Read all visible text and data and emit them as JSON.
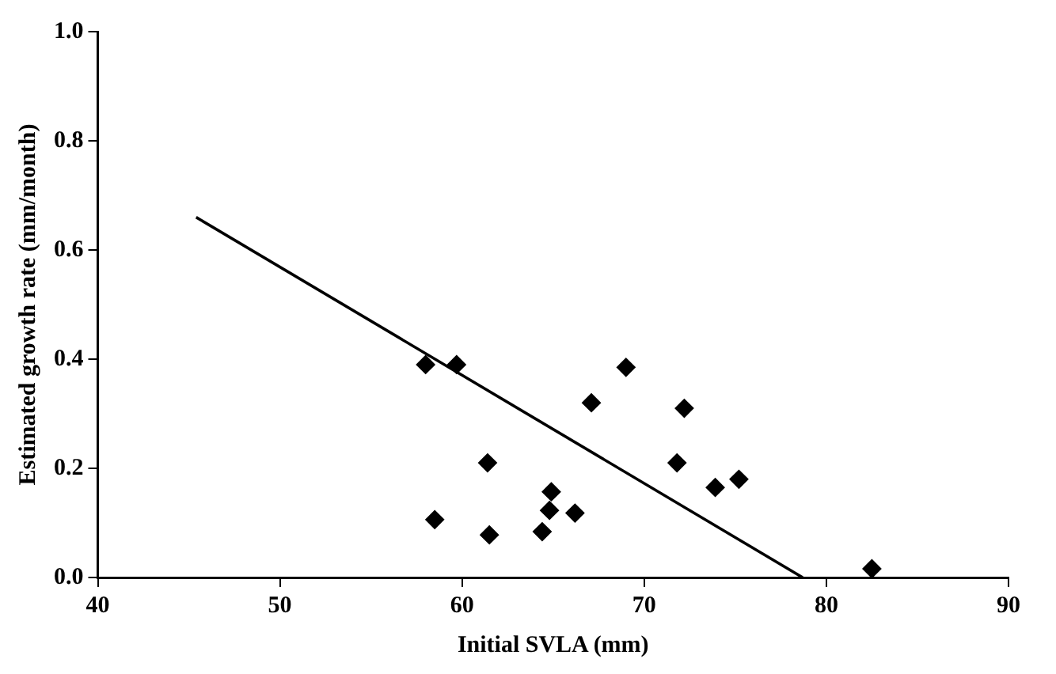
{
  "chart_data": {
    "type": "scatter",
    "xlabel": "Initial SVLA (mm)",
    "ylabel": "Estimated growth rate (mm/month)",
    "xlim": [
      40,
      90
    ],
    "xticks": [
      40,
      50,
      60,
      70,
      80,
      90
    ],
    "ylim": [
      0,
      1
    ],
    "yticks": [
      {
        "value": 0,
        "label": "0.0"
      },
      {
        "value": 0.2,
        "label": "0.2"
      },
      {
        "value": 0.4,
        "label": "0.4"
      },
      {
        "value": 0.6,
        "label": "0.6"
      },
      {
        "value": 0.8,
        "label": "0.8"
      },
      {
        "value": 1,
        "label": "1.0"
      }
    ],
    "grid": false,
    "legend": false,
    "marker": "diamond",
    "series": [
      {
        "color": "#000000",
        "x": [
          58.0,
          59.7,
          69.0,
          67.1,
          72.2,
          61.4,
          71.8,
          75.2,
          73.9,
          64.9,
          64.8,
          66.2,
          58.5,
          61.5,
          64.4,
          82.5
        ],
        "values": [
          0.39,
          0.39,
          0.385,
          0.32,
          0.31,
          0.21,
          0.21,
          0.18,
          0.165,
          0.157,
          0.123,
          0.118,
          0.106,
          0.078,
          0.084,
          0.016
        ]
      },
      {
        "type": "line",
        "color": "#000000",
        "x": [
          45.4,
          78.7
        ],
        "values": [
          0.66,
          0
        ],
        "marker": "none",
        "line_style": "solid"
      }
    ]
  }
}
